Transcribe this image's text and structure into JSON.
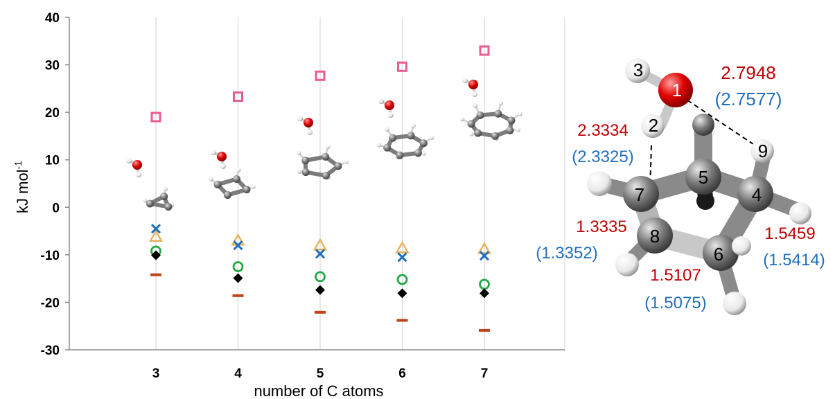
{
  "chart_data": {
    "type": "scatter",
    "xlabel": "number of C atoms",
    "ylabel_base": "kJ mol",
    "ylabel_sup": "-1",
    "ylim": [
      -30,
      40
    ],
    "yticks": [
      "40",
      "30",
      "20",
      "10",
      "0",
      "-10",
      "-20",
      "-30"
    ],
    "x": [
      "3",
      "4",
      "5",
      "6",
      "7"
    ],
    "grid": "vertical",
    "legend": "none",
    "series": [
      {
        "marker": "open-square",
        "color": "#ec5a93",
        "values": [
          19.0,
          23.3,
          27.7,
          29.6,
          33.0
        ]
      },
      {
        "marker": "open-triangle",
        "color": "#e8b35c",
        "values": [
          -6.2,
          -7.0,
          -8.0,
          -8.6,
          -8.8
        ]
      },
      {
        "marker": "cross",
        "color": "#1f6fbf",
        "values": [
          -4.5,
          -8.0,
          -9.8,
          -10.5,
          -10.2
        ]
      },
      {
        "marker": "open-circle",
        "color": "#23a845",
        "values": [
          -9.2,
          -12.5,
          -14.6,
          -15.2,
          -16.2
        ]
      },
      {
        "marker": "diamond",
        "color": "#000000",
        "values": [
          -10.1,
          -14.9,
          -17.4,
          -18.1,
          -18.1
        ]
      },
      {
        "marker": "dash",
        "color": "#c0431a",
        "values": [
          -14.2,
          -18.6,
          -22.1,
          -23.8,
          -25.9
        ]
      }
    ]
  },
  "molecule": {
    "atom_labels": [
      "1",
      "2",
      "3",
      "4",
      "5",
      "6",
      "7",
      "8",
      "9"
    ],
    "bond_lengths": [
      {
        "value": "2.7948",
        "ref": "(2.7577)"
      },
      {
        "value": "2.3334",
        "ref": "(2.3325)"
      },
      {
        "value": "1.3335",
        "ref": "(1.3352)"
      },
      {
        "value": "1.5107",
        "ref": "(1.5075)"
      },
      {
        "value": "1.5459",
        "ref": "(1.5414)"
      }
    ],
    "colors": {
      "computed": "#c00000",
      "reference": "#1f6fbf",
      "oxygen": "#e00000",
      "carbon": "#6f6f6f",
      "hydrogen": "#f2f2f2"
    }
  }
}
